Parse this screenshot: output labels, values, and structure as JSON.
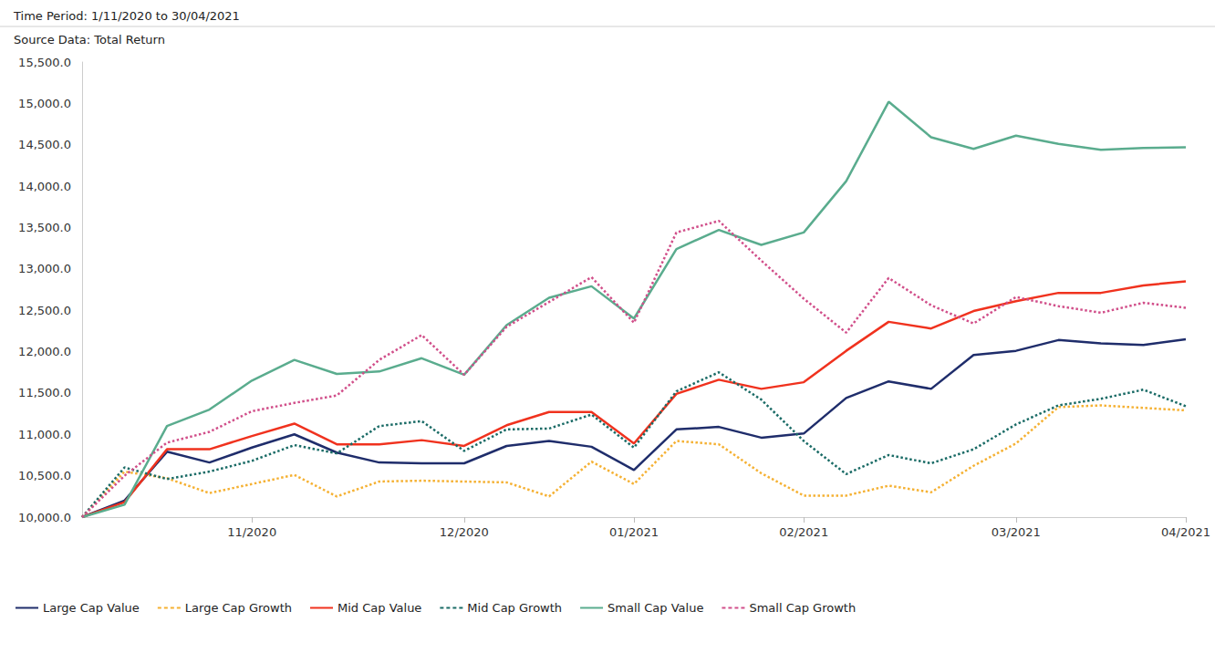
{
  "chart_data": {
    "type": "line",
    "title": "Time Period: 1/11/2020 to 30/04/2021",
    "subtitle": "Source Data: Total Return",
    "categories": [
      null,
      null,
      null,
      null,
      "11/2020",
      null,
      null,
      null,
      null,
      "12/2020",
      null,
      null,
      null,
      "01/2021",
      null,
      null,
      null,
      "02/2021",
      null,
      null,
      null,
      null,
      "03/2021",
      null,
      null,
      null,
      "04/2021"
    ],
    "series": [
      {
        "name": "Large Cap Value",
        "color": "#1f2d6b",
        "line_style": "solid",
        "values": [
          10000,
          10200,
          10790,
          10660,
          10840,
          11000,
          10780,
          10660,
          10650,
          10650,
          10860,
          10920,
          10850,
          10570,
          11060,
          11090,
          10960,
          11010,
          11440,
          11640,
          11550,
          11960,
          12010,
          12140,
          12100,
          12080,
          12150
        ]
      },
      {
        "name": "Large Cap Growth",
        "color": "#f5b133",
        "line_style": "dotted",
        "values": [
          10000,
          10550,
          10470,
          10290,
          10400,
          10510,
          10250,
          10430,
          10440,
          10430,
          10420,
          10250,
          10670,
          10400,
          10920,
          10880,
          10530,
          10260,
          10260,
          10380,
          10300,
          10620,
          10890,
          11330,
          11350,
          11320,
          11290
        ]
      },
      {
        "name": "Mid Cap Value",
        "color": "#f0321e",
        "line_style": "solid",
        "values": [
          10000,
          10180,
          10820,
          10820,
          10980,
          11130,
          10880,
          10880,
          10930,
          10860,
          11110,
          11270,
          11270,
          10890,
          11490,
          11660,
          11550,
          11630,
          12010,
          12360,
          12280,
          12490,
          12610,
          12710,
          12710,
          12800,
          12850
        ]
      },
      {
        "name": "Mid Cap Growth",
        "color": "#1a6b66",
        "line_style": "dotted",
        "values": [
          10000,
          10600,
          10460,
          10550,
          10680,
          10870,
          10770,
          11100,
          11160,
          10800,
          11060,
          11070,
          11240,
          10840,
          11520,
          11750,
          11420,
          10920,
          10520,
          10750,
          10650,
          10820,
          11120,
          11350,
          11430,
          11540,
          11340
        ]
      },
      {
        "name": "Small Cap Value",
        "color": "#5aac8e",
        "line_style": "solid",
        "values": [
          10000,
          10150,
          11100,
          11300,
          11650,
          11900,
          11730,
          11760,
          11920,
          11720,
          12320,
          12650,
          12790,
          12400,
          13240,
          13470,
          13290,
          13440,
          14060,
          15020,
          14590,
          14450,
          14610,
          14510,
          14440,
          14460,
          14470
        ]
      },
      {
        "name": "Small Cap Growth",
        "color": "#d14f8a",
        "line_style": "dotted",
        "values": [
          10000,
          10500,
          10900,
          11030,
          11280,
          11380,
          11470,
          11900,
          12200,
          11720,
          12300,
          12600,
          12900,
          12350,
          13440,
          13580,
          13100,
          12640,
          12230,
          12890,
          12560,
          12340,
          12660,
          12550,
          12470,
          12590,
          12530
        ]
      }
    ],
    "ylim": [
      10000,
      15500
    ],
    "yticks": [
      {
        "value": 10000,
        "label": "10,000.0"
      },
      {
        "value": 10500,
        "label": "10,500.0"
      },
      {
        "value": 11000,
        "label": "11,000.0"
      },
      {
        "value": 11500,
        "label": "11,500.0"
      },
      {
        "value": 12000,
        "label": "12,000.0"
      },
      {
        "value": 12500,
        "label": "12,500.0"
      },
      {
        "value": 13000,
        "label": "13,000.0"
      },
      {
        "value": 13500,
        "label": "13,500.0"
      },
      {
        "value": 14000,
        "label": "14,000.0"
      },
      {
        "value": 14500,
        "label": "14,500.0"
      },
      {
        "value": 15000,
        "label": "15,000.0"
      },
      {
        "value": 15500,
        "label": "15,500.0"
      }
    ],
    "grid": false,
    "legend": "bottom-left"
  }
}
